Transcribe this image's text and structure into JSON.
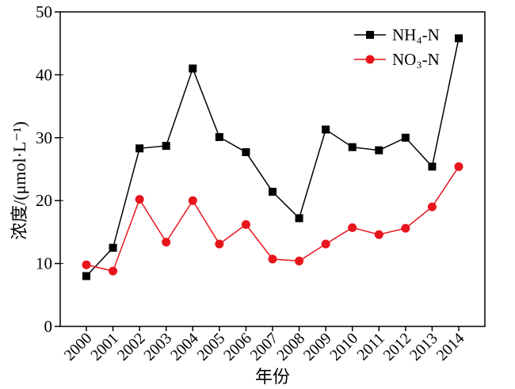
{
  "chart_data": {
    "type": "line",
    "xlabel": "年份",
    "ylabel": "浓度/(μmol·L⁻¹)",
    "ylim": [
      0,
      50
    ],
    "yticks": [
      0,
      10,
      20,
      30,
      40,
      50
    ],
    "categories": [
      "2000",
      "2001",
      "2002",
      "2003",
      "2004",
      "2005",
      "2006",
      "2007",
      "2008",
      "2009",
      "2010",
      "2011",
      "2012",
      "2013",
      "2014"
    ],
    "legend_position": "top-right",
    "series": [
      {
        "name": "NH₄-N",
        "marker": "square",
        "color": "#000000",
        "line_color": "#000000",
        "values": [
          8.0,
          12.5,
          28.3,
          28.7,
          41.0,
          30.1,
          27.7,
          21.4,
          17.2,
          31.3,
          28.5,
          28.0,
          30.0,
          25.4,
          45.8
        ]
      },
      {
        "name": "NO₃-N",
        "marker": "circle",
        "color": "#e8141b",
        "line_color": "#e8141b",
        "values": [
          9.8,
          8.8,
          20.2,
          13.4,
          20.0,
          13.1,
          16.2,
          10.7,
          10.4,
          13.1,
          15.7,
          14.6,
          15.6,
          19.0,
          25.4
        ]
      }
    ]
  }
}
